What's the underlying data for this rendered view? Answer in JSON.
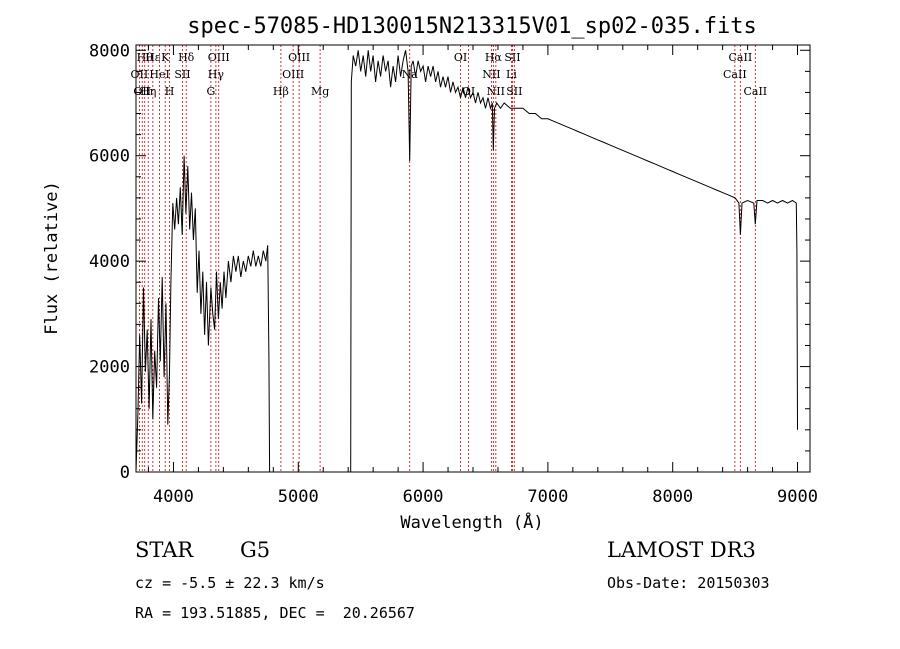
{
  "chart_data": {
    "type": "line",
    "title": "spec-57085-HD130015N213315V01_sp02-035.fits",
    "xlabel": "Wavelength (Å)",
    "ylabel": "Flux (relative)",
    "xlim": [
      3700,
      9100
    ],
    "ylim": [
      0,
      8100
    ],
    "xticks": [
      4000,
      5000,
      6000,
      7000,
      8000,
      9000
    ],
    "yticks": [
      0,
      2000,
      4000,
      6000,
      8000
    ],
    "series": [
      {
        "values": [
          [
            3700,
            0
          ],
          [
            3715,
            1100
          ],
          [
            3730,
            2600
          ],
          [
            3745,
            1300
          ],
          [
            3760,
            3500
          ],
          [
            3775,
            1900
          ],
          [
            3790,
            2700
          ],
          [
            3805,
            1200
          ],
          [
            3820,
            2900
          ],
          [
            3835,
            1000
          ],
          [
            3850,
            2300
          ],
          [
            3865,
            1600
          ],
          [
            3880,
            3300
          ],
          [
            3895,
            2100
          ],
          [
            3910,
            3700
          ],
          [
            3925,
            1800
          ],
          [
            3940,
            3200
          ],
          [
            3955,
            900
          ],
          [
            3968,
            1900
          ],
          [
            3980,
            3600
          ],
          [
            3995,
            5100
          ],
          [
            4010,
            4600
          ],
          [
            4025,
            5200
          ],
          [
            4040,
            4700
          ],
          [
            4055,
            5400
          ],
          [
            4070,
            4500
          ],
          [
            4085,
            6000
          ],
          [
            4100,
            4900
          ],
          [
            4115,
            5800
          ],
          [
            4130,
            4600
          ],
          [
            4145,
            5300
          ],
          [
            4160,
            4400
          ],
          [
            4175,
            5000
          ],
          [
            4190,
            3400
          ],
          [
            4205,
            4200
          ],
          [
            4220,
            3000
          ],
          [
            4235,
            3800
          ],
          [
            4250,
            2600
          ],
          [
            4265,
            3600
          ],
          [
            4280,
            2400
          ],
          [
            4300,
            3500
          ],
          [
            4315,
            3000
          ],
          [
            4330,
            2700
          ],
          [
            4345,
            3800
          ],
          [
            4360,
            2900
          ],
          [
            4375,
            3600
          ],
          [
            4390,
            3100
          ],
          [
            4405,
            3800
          ],
          [
            4420,
            3300
          ],
          [
            4440,
            4000
          ],
          [
            4460,
            3600
          ],
          [
            4480,
            4100
          ],
          [
            4500,
            3800
          ],
          [
            4520,
            4100
          ],
          [
            4540,
            3700
          ],
          [
            4560,
            4000
          ],
          [
            4580,
            3800
          ],
          [
            4600,
            4100
          ],
          [
            4620,
            3900
          ],
          [
            4640,
            4200
          ],
          [
            4660,
            3900
          ],
          [
            4680,
            4100
          ],
          [
            4700,
            3900
          ],
          [
            4720,
            4200
          ],
          [
            4740,
            4000
          ],
          [
            4755,
            4300
          ],
          [
            4765,
            2200
          ],
          [
            4770,
            0
          ],
          [
            5420,
            0
          ],
          [
            5425,
            7400
          ],
          [
            5440,
            7900
          ],
          [
            5460,
            7700
          ],
          [
            5480,
            8000
          ],
          [
            5500,
            7600
          ],
          [
            5520,
            7900
          ],
          [
            5540,
            7500
          ],
          [
            5560,
            8000
          ],
          [
            5580,
            7600
          ],
          [
            5600,
            7900
          ],
          [
            5620,
            7400
          ],
          [
            5640,
            7800
          ],
          [
            5660,
            7500
          ],
          [
            5680,
            7900
          ],
          [
            5700,
            7600
          ],
          [
            5720,
            7800
          ],
          [
            5740,
            7300
          ],
          [
            5760,
            7700
          ],
          [
            5780,
            7400
          ],
          [
            5800,
            7900
          ],
          [
            5820,
            7500
          ],
          [
            5840,
            7800
          ],
          [
            5860,
            8000
          ],
          [
            5880,
            7600
          ],
          [
            5893,
            5900
          ],
          [
            5905,
            7700
          ],
          [
            5920,
            7800
          ],
          [
            5940,
            7500
          ],
          [
            5960,
            7800
          ],
          [
            5980,
            7600
          ],
          [
            6000,
            7700
          ],
          [
            6020,
            7400
          ],
          [
            6040,
            7700
          ],
          [
            6060,
            7500
          ],
          [
            6080,
            7700
          ],
          [
            6100,
            7400
          ],
          [
            6120,
            7600
          ],
          [
            6140,
            7300
          ],
          [
            6160,
            7500
          ],
          [
            6180,
            7300
          ],
          [
            6200,
            7500
          ],
          [
            6220,
            7200
          ],
          [
            6240,
            7400
          ],
          [
            6260,
            7200
          ],
          [
            6280,
            7300
          ],
          [
            6300,
            7100
          ],
          [
            6320,
            7300
          ],
          [
            6340,
            7100
          ],
          [
            6360,
            7300
          ],
          [
            6380,
            7100
          ],
          [
            6400,
            7200
          ],
          [
            6420,
            7000
          ],
          [
            6440,
            7200
          ],
          [
            6460,
            7000
          ],
          [
            6480,
            7100
          ],
          [
            6500,
            6900
          ],
          [
            6520,
            7100
          ],
          [
            6540,
            6900
          ],
          [
            6555,
            7000
          ],
          [
            6563,
            6100
          ],
          [
            6572,
            6900
          ],
          [
            6590,
            7000
          ],
          [
            6620,
            6900
          ],
          [
            6650,
            7000
          ],
          [
            6700,
            6900
          ],
          [
            6750,
            6900
          ],
          [
            6800,
            6900
          ],
          [
            6850,
            6800
          ],
          [
            6900,
            6800
          ],
          [
            6950,
            6700
          ],
          [
            7000,
            6700
          ],
          [
            7050,
            6650
          ],
          [
            7100,
            6600
          ],
          [
            7150,
            6550
          ],
          [
            7200,
            6500
          ],
          [
            7250,
            6450
          ],
          [
            7300,
            6400
          ],
          [
            7350,
            6350
          ],
          [
            7400,
            6300
          ],
          [
            7450,
            6250
          ],
          [
            7500,
            6200
          ],
          [
            7550,
            6150
          ],
          [
            7600,
            6100
          ],
          [
            7650,
            6050
          ],
          [
            7700,
            6000
          ],
          [
            7750,
            5950
          ],
          [
            7800,
            5900
          ],
          [
            7850,
            5850
          ],
          [
            7900,
            5800
          ],
          [
            7950,
            5750
          ],
          [
            8000,
            5700
          ],
          [
            8050,
            5650
          ],
          [
            8100,
            5600
          ],
          [
            8150,
            5550
          ],
          [
            8200,
            5500
          ],
          [
            8250,
            5450
          ],
          [
            8300,
            5400
          ],
          [
            8350,
            5350
          ],
          [
            8400,
            5300
          ],
          [
            8450,
            5250
          ],
          [
            8500,
            5200
          ],
          [
            8530,
            5100
          ],
          [
            8542,
            4500
          ],
          [
            8555,
            5100
          ],
          [
            8600,
            5150
          ],
          [
            8650,
            5100
          ],
          [
            8662,
            4700
          ],
          [
            8675,
            5150
          ],
          [
            8720,
            5150
          ],
          [
            8760,
            5100
          ],
          [
            8800,
            5150
          ],
          [
            8840,
            5100
          ],
          [
            8880,
            5150
          ],
          [
            8920,
            5100
          ],
          [
            8960,
            5150
          ],
          [
            8990,
            5100
          ],
          [
            8995,
            4200
          ],
          [
            9000,
            800
          ]
        ]
      }
    ],
    "line_markers": [
      {
        "wavelength": 3727,
        "label": "OII",
        "row": 2
      },
      {
        "wavelength": 3750,
        "label": "OII",
        "row": 3
      },
      {
        "wavelength": 3770,
        "label": "Hθ",
        "row": 1
      },
      {
        "wavelength": 3798,
        "label": "Hη",
        "row": 3
      },
      {
        "wavelength": 3835,
        "label": "Hε",
        "row": 1
      },
      {
        "wavelength": 3889,
        "label": "HeI",
        "row": 2
      },
      {
        "wavelength": 3934,
        "label": "K",
        "row": 1
      },
      {
        "wavelength": 3969,
        "label": "H",
        "row": 3
      },
      {
        "wavelength": 4072,
        "label": "SII",
        "row": 2
      },
      {
        "wavelength": 4102,
        "label": "Hδ",
        "row": 1
      },
      {
        "wavelength": 4300,
        "label": "G",
        "row": 3
      },
      {
        "wavelength": 4340,
        "label": "Hγ",
        "row": 2
      },
      {
        "wavelength": 4363,
        "label": "OIII",
        "row": 1
      },
      {
        "wavelength": 4861,
        "label": "Hβ",
        "row": 3
      },
      {
        "wavelength": 4959,
        "label": "OIII",
        "row": 2
      },
      {
        "wavelength": 5007,
        "label": "OIII",
        "row": 1
      },
      {
        "wavelength": 5175,
        "label": "Mg",
        "row": 3
      },
      {
        "wavelength": 5893,
        "label": "Na",
        "row": 2
      },
      {
        "wavelength": 6300,
        "label": "OI",
        "row": 1
      },
      {
        "wavelength": 6364,
        "label": "OI",
        "row": 3
      },
      {
        "wavelength": 6548,
        "label": "NII",
        "row": 2
      },
      {
        "wavelength": 6563,
        "label": "Hα",
        "row": 1
      },
      {
        "wavelength": 6583,
        "label": "NII",
        "row": 3
      },
      {
        "wavelength": 6708,
        "label": "Li",
        "row": 2
      },
      {
        "wavelength": 6716,
        "label": "SII",
        "row": 1
      },
      {
        "wavelength": 6731,
        "label": "SII",
        "row": 3
      },
      {
        "wavelength": 8498,
        "label": "CaII",
        "row": 2
      },
      {
        "wavelength": 8542,
        "label": "CaII",
        "row": 1
      },
      {
        "wavelength": 8662,
        "label": "CaII",
        "row": 3
      }
    ],
    "grid": false,
    "legend": "none"
  },
  "info": {
    "object_class": "STAR",
    "subclass": "G5",
    "survey": "LAMOST DR3",
    "redshift_line": "cz = -5.5 ± 22.3 km/s",
    "obs_date": "Obs-Date: 20150303",
    "coords": "RA = 193.51885, DEC =  20.26567"
  },
  "colors": {
    "spectrum": "#000000",
    "marker": "#cc0000"
  }
}
